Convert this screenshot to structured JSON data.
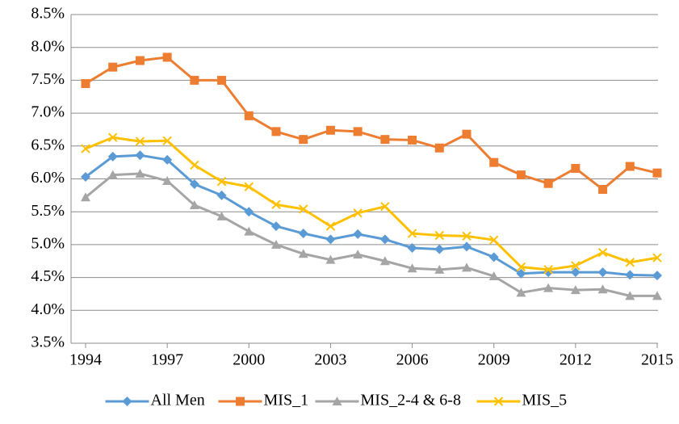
{
  "chart_data": {
    "type": "line",
    "x": [
      1994,
      1995,
      1996,
      1997,
      1998,
      1999,
      2000,
      2001,
      2002,
      2003,
      2004,
      2005,
      2006,
      2007,
      2008,
      2009,
      2010,
      2011,
      2012,
      2013,
      2014,
      2015
    ],
    "xlim": [
      1994,
      2015
    ],
    "xticks": [
      1994,
      1997,
      2000,
      2003,
      2006,
      2009,
      2012,
      2015
    ],
    "ylim": [
      3.5,
      8.5
    ],
    "yticks": [
      {
        "value": 3.5,
        "label": "3.5%"
      },
      {
        "value": 4.0,
        "label": "4.0%"
      },
      {
        "value": 4.5,
        "label": "4.5%"
      },
      {
        "value": 5.0,
        "label": "5.0%"
      },
      {
        "value": 5.5,
        "label": "5.5%"
      },
      {
        "value": 6.0,
        "label": "6.0%"
      },
      {
        "value": 6.5,
        "label": "6.5%"
      },
      {
        "value": 7.0,
        "label": "7.0%"
      },
      {
        "value": 7.5,
        "label": "7.5%"
      },
      {
        "value": 8.0,
        "label": "8.0%"
      },
      {
        "value": 8.5,
        "label": "8.5%"
      }
    ],
    "grid": true,
    "legend": "bottom",
    "series": [
      {
        "name": "All Men",
        "color": "#5b9bd5",
        "marker": "diamond",
        "values": [
          6.03,
          6.34,
          6.36,
          6.29,
          5.92,
          5.75,
          5.5,
          5.28,
          5.17,
          5.08,
          5.16,
          5.08,
          4.95,
          4.93,
          4.97,
          4.81,
          4.56,
          4.58,
          4.58,
          4.58,
          4.54,
          4.53
        ]
      },
      {
        "name": "MIS_1",
        "color": "#ed7d31",
        "marker": "square",
        "values": [
          7.45,
          7.7,
          7.8,
          7.85,
          7.5,
          7.5,
          6.96,
          6.72,
          6.6,
          6.74,
          6.72,
          6.6,
          6.59,
          6.47,
          6.68,
          6.25,
          6.06,
          5.93,
          6.16,
          5.84,
          6.19,
          6.09
        ]
      },
      {
        "name": "MIS_2-4 & 6-8",
        "color": "#a5a5a5",
        "marker": "triangle",
        "values": [
          5.72,
          6.06,
          6.08,
          5.97,
          5.6,
          5.43,
          5.2,
          5.0,
          4.86,
          4.77,
          4.85,
          4.75,
          4.64,
          4.62,
          4.65,
          4.52,
          4.27,
          4.34,
          4.31,
          4.32,
          4.22,
          4.22
        ]
      },
      {
        "name": "MIS_5",
        "color": "#ffc000",
        "marker": "x",
        "values": [
          6.46,
          6.63,
          6.57,
          6.58,
          6.21,
          5.96,
          5.88,
          5.61,
          5.54,
          5.28,
          5.48,
          5.58,
          5.17,
          5.14,
          5.13,
          5.07,
          4.66,
          4.62,
          4.68,
          4.88,
          4.73,
          4.8
        ]
      }
    ]
  }
}
